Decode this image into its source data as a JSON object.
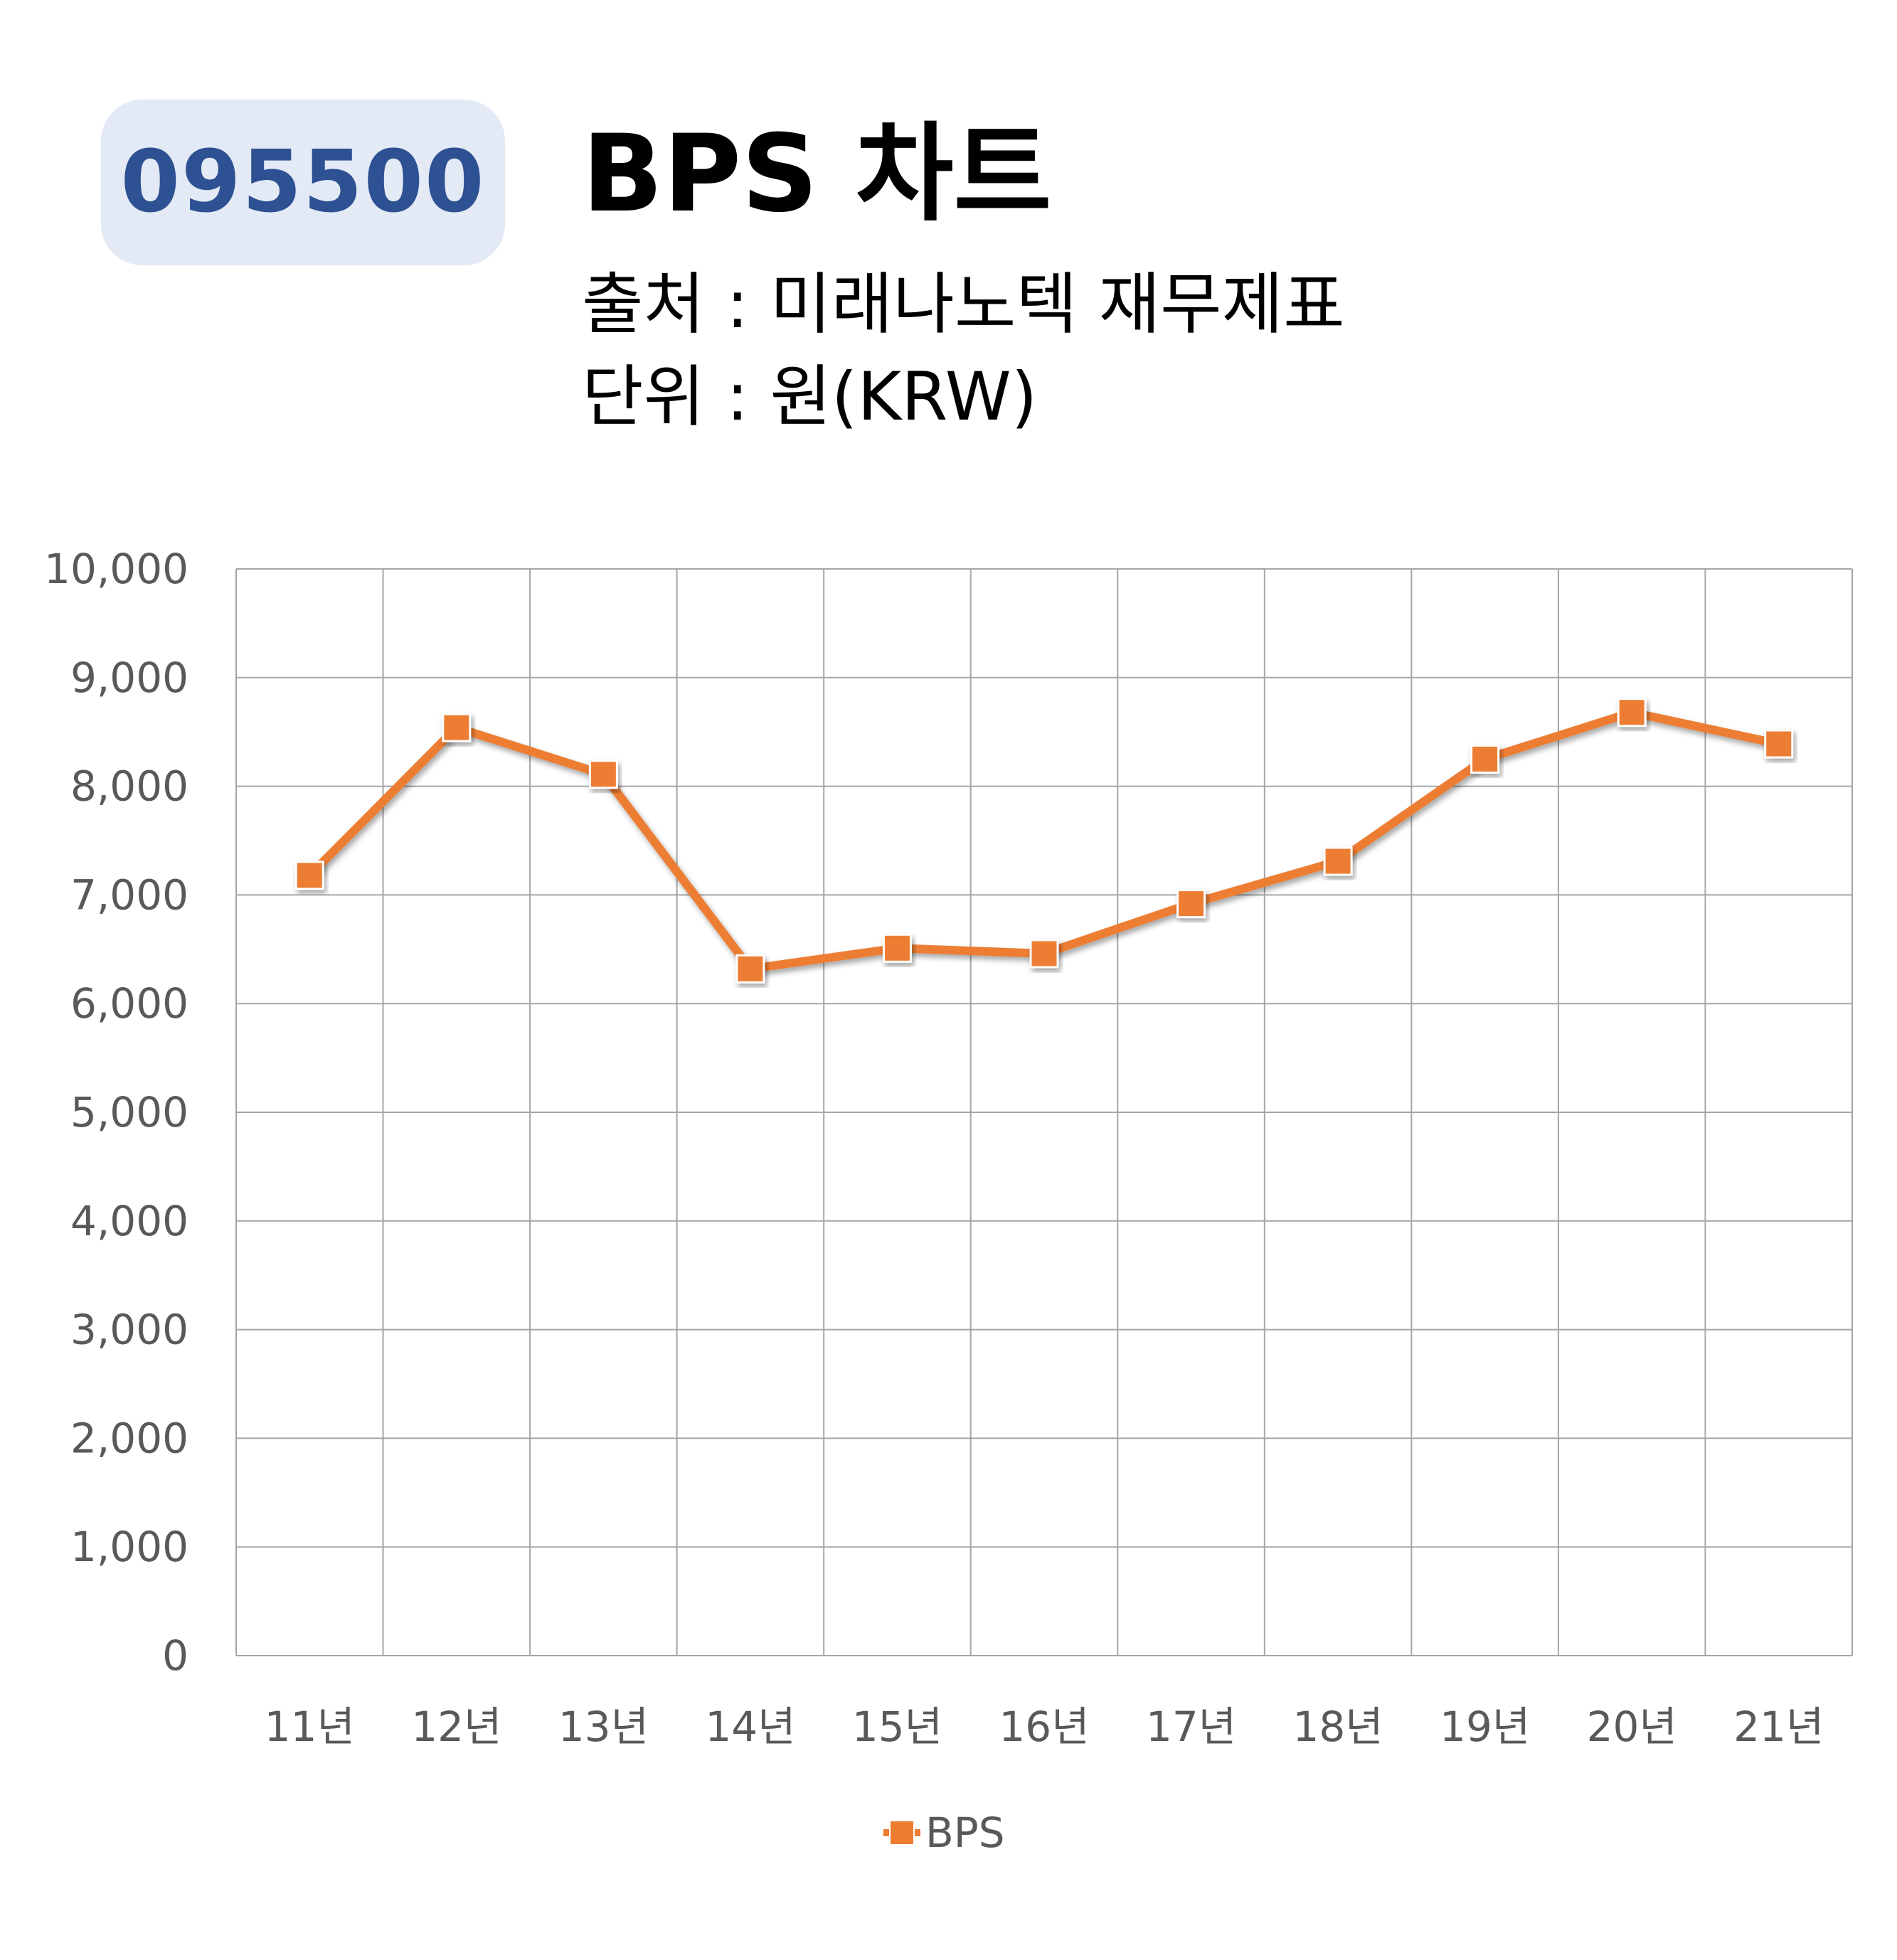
{
  "badge": {
    "code": "095500"
  },
  "header": {
    "title": "BPS 차트",
    "source": "출처 : 미래나노텍 재무제표",
    "unit": "단위 : 원(KRW)"
  },
  "colors": {
    "series": "#ed7d31",
    "badge_bg": "#e3e9f5",
    "badge_text": "#2d5192",
    "grid": "#a6a6a6"
  },
  "chart_data": {
    "type": "line",
    "title": "BPS 차트",
    "categories": [
      "11년",
      "12년",
      "13년",
      "14년",
      "15년",
      "16년",
      "17년",
      "18년",
      "19년",
      "20년",
      "21년"
    ],
    "series": [
      {
        "name": "BPS",
        "values": [
          7180,
          8540,
          8110,
          6320,
          6510,
          6460,
          6920,
          7310,
          8250,
          8680,
          8390
        ]
      }
    ],
    "ylim": [
      0,
      10000
    ],
    "yticks": [
      0,
      1000,
      2000,
      3000,
      4000,
      5000,
      6000,
      7000,
      8000,
      9000,
      10000
    ],
    "ytick_labels": [
      "0",
      "1,000",
      "2,000",
      "3,000",
      "4,000",
      "5,000",
      "6,000",
      "7,000",
      "8,000",
      "9,000",
      "10,000"
    ],
    "grid": true,
    "marker": "square",
    "legend": "bottom"
  }
}
